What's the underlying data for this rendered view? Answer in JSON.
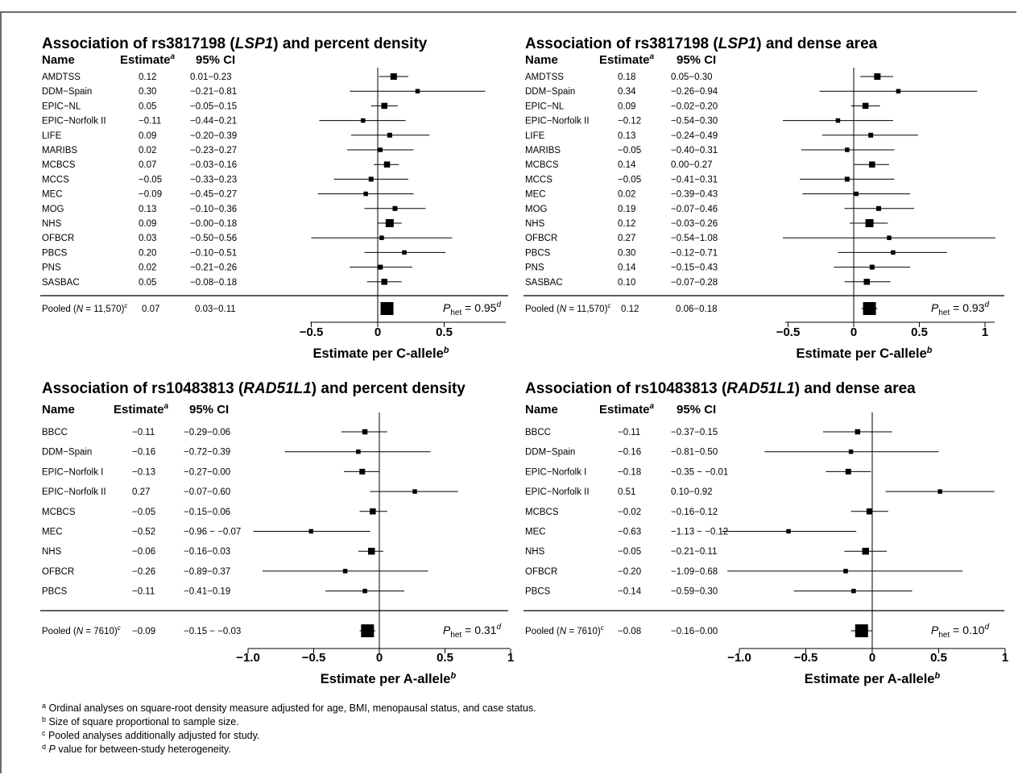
{
  "chart_data": [
    {
      "type": "forest",
      "title": "Association of rs3817198 (LSP1) and percent density",
      "gene": "LSP1",
      "headers": {
        "name": "Name",
        "estimate": "Estimate",
        "estimate_sup": "a",
        "ci": "95% CI"
      },
      "studies": [
        {
          "name": "AMDTSS",
          "estimate": "0.12",
          "ci": "0.01−0.23",
          "est": 0.12,
          "lo": 0.01,
          "hi": 0.23,
          "box": 1.0
        },
        {
          "name": "DDM−Spain",
          "estimate": "0.30",
          "ci": "−0.21−0.81",
          "est": 0.3,
          "lo": -0.21,
          "hi": 0.81,
          "box": 0.5
        },
        {
          "name": "EPIC−NL",
          "estimate": "0.05",
          "ci": "−0.05−0.15",
          "est": 0.05,
          "lo": -0.05,
          "hi": 0.15,
          "box": 0.9
        },
        {
          "name": "EPIC−Norfolk II",
          "estimate": "−0.11",
          "ci": "−0.44−0.21",
          "est": -0.11,
          "lo": -0.44,
          "hi": 0.21,
          "box": 0.5
        },
        {
          "name": "LIFE",
          "estimate": "0.09",
          "ci": "−0.20−0.39",
          "est": 0.09,
          "lo": -0.2,
          "hi": 0.39,
          "box": 0.6
        },
        {
          "name": "MARIBS",
          "estimate": "0.02",
          "ci": "−0.23−0.27",
          "est": 0.02,
          "lo": -0.23,
          "hi": 0.27,
          "box": 0.5
        },
        {
          "name": "MCBCS",
          "estimate": "0.07",
          "ci": "−0.03−0.16",
          "est": 0.07,
          "lo": -0.03,
          "hi": 0.16,
          "box": 0.9
        },
        {
          "name": "MCCS",
          "estimate": "−0.05",
          "ci": "−0.33−0.23",
          "est": -0.05,
          "lo": -0.33,
          "hi": 0.23,
          "box": 0.6
        },
        {
          "name": "MEC",
          "estimate": "−0.09",
          "ci": "−0.45−0.27",
          "est": -0.09,
          "lo": -0.45,
          "hi": 0.27,
          "box": 0.5
        },
        {
          "name": "MOG",
          "estimate": "0.13",
          "ci": "−0.10−0.36",
          "est": 0.13,
          "lo": -0.1,
          "hi": 0.36,
          "box": 0.6
        },
        {
          "name": "NHS",
          "estimate": "0.09",
          "ci": "−0.00−0.18",
          "est": 0.09,
          "lo": -0.0,
          "hi": 0.18,
          "box": 1.4
        },
        {
          "name": "OFBCR",
          "estimate": "0.03",
          "ci": "−0.50−0.56",
          "est": 0.03,
          "lo": -0.5,
          "hi": 0.56,
          "box": 0.5
        },
        {
          "name": "PBCS",
          "estimate": "0.20",
          "ci": "−0.10−0.51",
          "est": 0.2,
          "lo": -0.1,
          "hi": 0.51,
          "box": 0.5
        },
        {
          "name": "PNS",
          "estimate": "0.02",
          "ci": "−0.21−0.26",
          "est": 0.02,
          "lo": -0.21,
          "hi": 0.26,
          "box": 0.6
        },
        {
          "name": "SASBAC",
          "estimate": "0.05",
          "ci": "−0.08−0.18",
          "est": 0.05,
          "lo": -0.08,
          "hi": 0.18,
          "box": 0.9
        }
      ],
      "pooled": {
        "name_pre": "Pooled (",
        "n_label": "N",
        "n_value": " = 11,570)",
        "sup": "c",
        "estimate": "0.07",
        "ci": "0.03−0.11",
        "est": 0.07,
        "lo": 0.03,
        "hi": 0.11
      },
      "phet": {
        "label": "P",
        "sub": "het",
        "value": " = 0.95",
        "sup": "d"
      },
      "x_ticks": [
        {
          "v": -0.5,
          "label": "−0.5"
        },
        {
          "v": 0,
          "label": "0"
        },
        {
          "v": 0.5,
          "label": "0.5"
        }
      ],
      "xlim": [
        -1.05,
        0.98
      ],
      "xlabel": "Estimate per C-allele",
      "xlabel_sup": "b"
    },
    {
      "type": "forest",
      "title": "Association of rs3817198 (LSP1) and dense area",
      "gene": "LSP1",
      "headers": {
        "name": "Name",
        "estimate": "Estimate",
        "estimate_sup": "a",
        "ci": "95% CI"
      },
      "studies": [
        {
          "name": "AMDTSS",
          "estimate": "0.18",
          "ci": "0.05−0.30",
          "est": 0.18,
          "lo": 0.05,
          "hi": 0.3,
          "box": 1.0
        },
        {
          "name": "DDM−Spain",
          "estimate": "0.34",
          "ci": "−0.26−0.94",
          "est": 0.34,
          "lo": -0.26,
          "hi": 0.94,
          "box": 0.5
        },
        {
          "name": "EPIC−NL",
          "estimate": "0.09",
          "ci": "−0.02−0.20",
          "est": 0.09,
          "lo": -0.02,
          "hi": 0.2,
          "box": 0.9
        },
        {
          "name": "EPIC−Norfolk II",
          "estimate": "−0.12",
          "ci": "−0.54−0.30",
          "est": -0.12,
          "lo": -0.54,
          "hi": 0.3,
          "box": 0.5
        },
        {
          "name": "LIFE",
          "estimate": "0.13",
          "ci": "−0.24−0.49",
          "est": 0.13,
          "lo": -0.24,
          "hi": 0.49,
          "box": 0.6
        },
        {
          "name": "MARIBS",
          "estimate": "−0.05",
          "ci": "−0.40−0.31",
          "est": -0.05,
          "lo": -0.4,
          "hi": 0.31,
          "box": 0.5
        },
        {
          "name": "MCBCS",
          "estimate": "0.14",
          "ci": "0.00−0.27",
          "est": 0.14,
          "lo": 0.0,
          "hi": 0.27,
          "box": 0.9
        },
        {
          "name": "MCCS",
          "estimate": "−0.05",
          "ci": "−0.41−0.31",
          "est": -0.05,
          "lo": -0.41,
          "hi": 0.31,
          "box": 0.6
        },
        {
          "name": "MEC",
          "estimate": "0.02",
          "ci": "−0.39−0.43",
          "est": 0.02,
          "lo": -0.39,
          "hi": 0.43,
          "box": 0.5
        },
        {
          "name": "MOG",
          "estimate": "0.19",
          "ci": "−0.07−0.46",
          "est": 0.19,
          "lo": -0.07,
          "hi": 0.46,
          "box": 0.6
        },
        {
          "name": "NHS",
          "estimate": "0.12",
          "ci": "−0.03−0.26",
          "est": 0.12,
          "lo": -0.03,
          "hi": 0.26,
          "box": 1.4
        },
        {
          "name": "OFBCR",
          "estimate": "0.27",
          "ci": "−0.54−1.08",
          "est": 0.27,
          "lo": -0.54,
          "hi": 1.08,
          "box": 0.5
        },
        {
          "name": "PBCS",
          "estimate": "0.30",
          "ci": "−0.12−0.71",
          "est": 0.3,
          "lo": -0.12,
          "hi": 0.71,
          "box": 0.5
        },
        {
          "name": "PNS",
          "estimate": "0.14",
          "ci": "−0.15−0.43",
          "est": 0.14,
          "lo": -0.15,
          "hi": 0.43,
          "box": 0.6
        },
        {
          "name": "SASBAC",
          "estimate": "0.10",
          "ci": "−0.07−0.28",
          "est": 0.1,
          "lo": -0.07,
          "hi": 0.28,
          "box": 0.9
        }
      ],
      "pooled": {
        "name_pre": "Pooled (",
        "n_label": "N",
        "n_value": " = 11,570)",
        "sup": "c",
        "estimate": "0.12",
        "ci": "0.06−0.18",
        "est": 0.12,
        "lo": 0.06,
        "hi": 0.18
      },
      "phet": {
        "label": "P",
        "sub": "het",
        "value": " = 0.93",
        "sup": "d"
      },
      "x_ticks": [
        {
          "v": -0.5,
          "label": "−0.5"
        },
        {
          "v": 0,
          "label": "0"
        },
        {
          "v": 0.5,
          "label": "0.5"
        },
        {
          "v": 1,
          "label": "1"
        }
      ],
      "xlim": [
        -1.05,
        1.08
      ],
      "xlabel": "Estimate per C-allele",
      "xlabel_sup": "b"
    },
    {
      "type": "forest",
      "title": "Association of rs10483813 (RAD51L1) and percent density",
      "gene": "RAD51L1",
      "headers": {
        "name": "Name",
        "estimate": "Estimate",
        "estimate_sup": "a",
        "ci": "95% CI"
      },
      "studies": [
        {
          "name": "BBCC",
          "estimate": "−0.11",
          "ci": "−0.29−0.06",
          "est": -0.11,
          "lo": -0.29,
          "hi": 0.06,
          "box": 0.7
        },
        {
          "name": "DDM−Spain",
          "estimate": "−0.16",
          "ci": "−0.72−0.39",
          "est": -0.16,
          "lo": -0.72,
          "hi": 0.39,
          "box": 0.5
        },
        {
          "name": "EPIC−Norfolk I",
          "estimate": "−0.13",
          "ci": "−0.27−0.00",
          "est": -0.13,
          "lo": -0.27,
          "hi": 0.0,
          "box": 0.8
        },
        {
          "name": "EPIC−Norfolk II",
          "estimate": "0.27",
          "ci": "−0.07−0.60",
          "est": 0.27,
          "lo": -0.07,
          "hi": 0.6,
          "box": 0.5
        },
        {
          "name": "MCBCS",
          "estimate": "−0.05",
          "ci": "−0.15−0.06",
          "est": -0.05,
          "lo": -0.15,
          "hi": 0.06,
          "box": 0.9
        },
        {
          "name": "MEC",
          "estimate": "−0.52",
          "ci": "−0.96 − −0.07",
          "est": -0.52,
          "lo": -0.96,
          "hi": -0.07,
          "box": 0.5
        },
        {
          "name": "NHS",
          "estimate": "−0.06",
          "ci": "−0.16−0.03",
          "est": -0.06,
          "lo": -0.16,
          "hi": 0.03,
          "box": 1.1
        },
        {
          "name": "OFBCR",
          "estimate": "−0.26",
          "ci": "−0.89−0.37",
          "est": -0.26,
          "lo": -0.89,
          "hi": 0.37,
          "box": 0.5
        },
        {
          "name": "PBCS",
          "estimate": "−0.11",
          "ci": "−0.41−0.19",
          "est": -0.11,
          "lo": -0.41,
          "hi": 0.19,
          "box": 0.5
        }
      ],
      "pooled": {
        "name_pre": "Pooled (",
        "n_label": "N",
        "n_value": " = 7610)",
        "sup": "c",
        "estimate": "−0.09",
        "ci": "−0.15 − −0.03",
        "est": -0.09,
        "lo": -0.15,
        "hi": -0.03
      },
      "phet": {
        "label": "P",
        "sub": "het",
        "value": " = 0.31",
        "sup": "d"
      },
      "x_ticks": [
        {
          "v": -1.0,
          "label": "−1.0"
        },
        {
          "v": -0.5,
          "label": "−0.5"
        },
        {
          "v": 0,
          "label": "0"
        },
        {
          "v": 0.5,
          "label": "0.5"
        },
        {
          "v": 1,
          "label": "1"
        }
      ],
      "xlim": [
        -1.05,
        1.0
      ],
      "xlabel": "Estimate per A-allele",
      "xlabel_sup": "b"
    },
    {
      "type": "forest",
      "title": "Association of rs10483813 (RAD51L1) and dense area",
      "gene": "RAD51L1",
      "headers": {
        "name": "Name",
        "estimate": "Estimate",
        "estimate_sup": "a",
        "ci": "95% CI"
      },
      "studies": [
        {
          "name": "BBCC",
          "estimate": "−0.11",
          "ci": "−0.37−0.15",
          "est": -0.11,
          "lo": -0.37,
          "hi": 0.15,
          "box": 0.7
        },
        {
          "name": "DDM−Spain",
          "estimate": "−0.16",
          "ci": "−0.81−0.50",
          "est": -0.16,
          "lo": -0.81,
          "hi": 0.5,
          "box": 0.5
        },
        {
          "name": "EPIC−Norfolk I",
          "estimate": "−0.18",
          "ci": "−0.35 − −0.01",
          "est": -0.18,
          "lo": -0.35,
          "hi": -0.01,
          "box": 0.8
        },
        {
          "name": "EPIC−Norfolk II",
          "estimate": "0.51",
          "ci": "0.10−0.92",
          "est": 0.51,
          "lo": 0.1,
          "hi": 0.92,
          "box": 0.5
        },
        {
          "name": "MCBCS",
          "estimate": "−0.02",
          "ci": "−0.16−0.12",
          "est": -0.02,
          "lo": -0.16,
          "hi": 0.12,
          "box": 0.9
        },
        {
          "name": "MEC",
          "estimate": "−0.63",
          "ci": "−1.13 − −0.12",
          "est": -0.63,
          "lo": -1.13,
          "hi": -0.12,
          "box": 0.5
        },
        {
          "name": "NHS",
          "estimate": "−0.05",
          "ci": "−0.21−0.11",
          "est": -0.05,
          "lo": -0.21,
          "hi": 0.11,
          "box": 1.1
        },
        {
          "name": "OFBCR",
          "estimate": "−0.20",
          "ci": "−1.09−0.68",
          "est": -0.2,
          "lo": -1.09,
          "hi": 0.68,
          "box": 0.5
        },
        {
          "name": "PBCS",
          "estimate": "−0.14",
          "ci": "−0.59−0.30",
          "est": -0.14,
          "lo": -0.59,
          "hi": 0.3,
          "box": 0.5
        }
      ],
      "pooled": {
        "name_pre": "Pooled (",
        "n_label": "N",
        "n_value": " = 7610)",
        "sup": "c",
        "estimate": "−0.08",
        "ci": "−0.16−0.00",
        "est": -0.08,
        "lo": -0.16,
        "hi": 0.0
      },
      "phet": {
        "label": "P",
        "sub": "het",
        "value": " = 0.10",
        "sup": "d"
      },
      "x_ticks": [
        {
          "v": -1.0,
          "label": "−1.0"
        },
        {
          "v": -0.5,
          "label": "−0.5"
        },
        {
          "v": 0,
          "label": "0"
        },
        {
          "v": 0.5,
          "label": "0.5"
        },
        {
          "v": 1,
          "label": "1"
        }
      ],
      "xlim": [
        -1.2,
        1.0
      ],
      "xlabel": "Estimate per A-allele",
      "xlabel_sup": "b"
    }
  ],
  "footnotes": [
    {
      "sup": "a",
      "text": " Ordinal analyses on square-root density measure adjusted for age, BMI, menopausal status, and case status."
    },
    {
      "sup": "b",
      "text": " Size of square proportional to sample size."
    },
    {
      "sup": "c",
      "text": " Pooled analyses additionally adjusted for study."
    },
    {
      "sup": "d",
      "italic": "P",
      "text": " value for between-study heterogeneity."
    }
  ]
}
